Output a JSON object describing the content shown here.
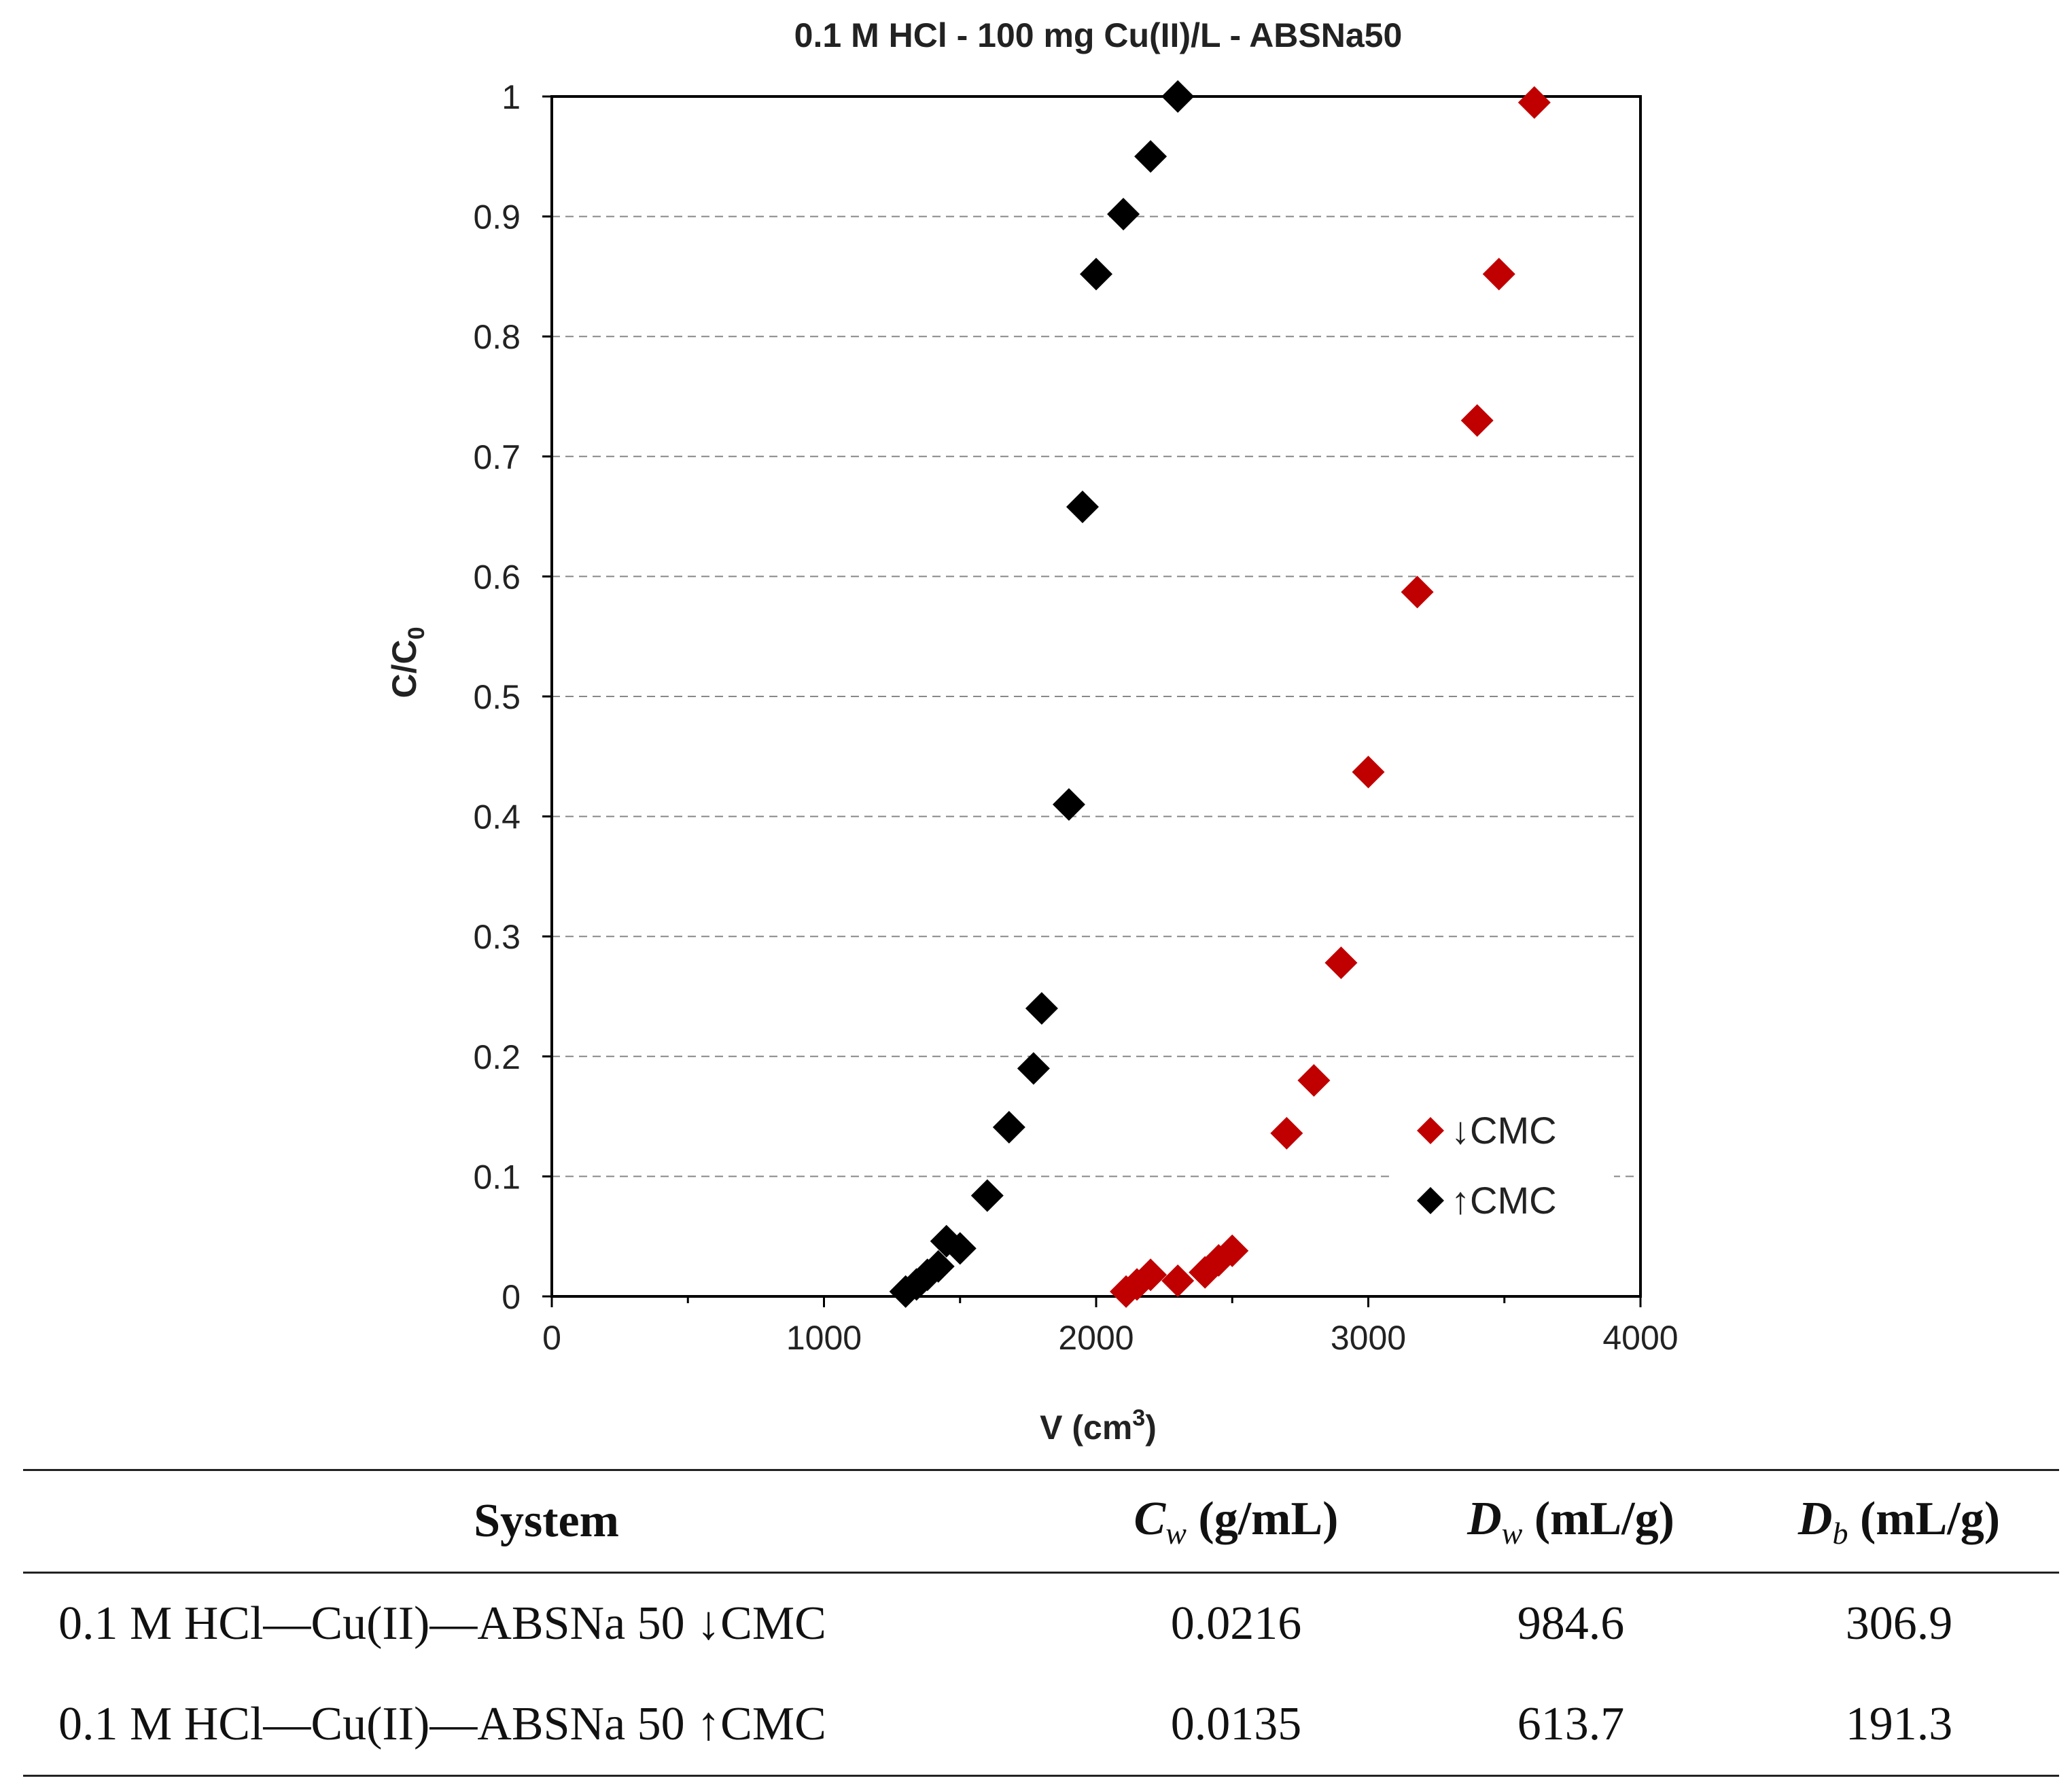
{
  "chart_data": {
    "type": "scatter",
    "title": "0.1 M HCl - 100 mg Cu(II)/L - ABSNa50",
    "xlabel": "V (cm",
    "xlabel_sup": "3",
    "xlabel_end": ")",
    "ylabel": "C/C",
    "ylabel_sub": "0",
    "xlim": [
      0,
      4000
    ],
    "ylim": [
      0,
      1
    ],
    "x_ticks": [
      0,
      1000,
      2000,
      3000,
      4000
    ],
    "x_tick_labels": [
      "0",
      "1000",
      "2000",
      "3000",
      "4000"
    ],
    "y_ticks": [
      0,
      0.1,
      0.2,
      0.3,
      0.4,
      0.5,
      0.6,
      0.7,
      0.8,
      0.9,
      1
    ],
    "y_tick_labels": [
      "0",
      "0.1",
      "0.2",
      "0.3",
      "0.4",
      "0.5",
      "0.6",
      "0.7",
      "0.8",
      "0.9",
      "1"
    ],
    "grid": "horizontal dashed",
    "legend_position": "lower-right",
    "series": [
      {
        "name": "↓CMC",
        "color": "#c00000",
        "marker": "diamond",
        "points": [
          [
            2110,
            0.004
          ],
          [
            2150,
            0.01
          ],
          [
            2200,
            0.018
          ],
          [
            2300,
            0.013
          ],
          [
            2400,
            0.02
          ],
          [
            2450,
            0.03
          ],
          [
            2500,
            0.038
          ],
          [
            2700,
            0.136
          ],
          [
            2800,
            0.18
          ],
          [
            2900,
            0.278
          ],
          [
            3000,
            0.437
          ],
          [
            3180,
            0.587
          ],
          [
            3400,
            0.73
          ],
          [
            3480,
            0.852
          ],
          [
            3610,
            0.995
          ]
        ]
      },
      {
        "name": "↑CMC",
        "color": "#000000",
        "marker": "diamond",
        "points": [
          [
            1300,
            0.004
          ],
          [
            1340,
            0.01
          ],
          [
            1380,
            0.018
          ],
          [
            1420,
            0.025
          ],
          [
            1450,
            0.046
          ],
          [
            1500,
            0.04
          ],
          [
            1600,
            0.084
          ],
          [
            1680,
            0.141
          ],
          [
            1770,
            0.19
          ],
          [
            1800,
            0.24
          ],
          [
            1900,
            0.41
          ],
          [
            1950,
            0.658
          ],
          [
            2000,
            0.852
          ],
          [
            2100,
            0.902
          ],
          [
            2200,
            0.95
          ],
          [
            2300,
            1.0
          ]
        ]
      }
    ]
  },
  "table": {
    "headers": {
      "system": "System",
      "cw_sym": "C",
      "cw_sub": "w",
      "cw_unit": " (g/mL)",
      "dw_sym": "D",
      "dw_sub": "w",
      "dw_unit": " (mL/g)",
      "db_sym": "D",
      "db_sub": "b",
      "db_unit": " (mL/g)"
    },
    "rows": [
      {
        "system": "0.1 M HCl—Cu(II)—ABSNa 50 ↓CMC",
        "cw": "0.0216",
        "dw": "984.6",
        "db": "306.9"
      },
      {
        "system": "0.1 M HCl—Cu(II)—ABSNa 50 ↑CMC",
        "cw": "0.0135",
        "dw": "613.7",
        "db": "191.3"
      }
    ]
  }
}
